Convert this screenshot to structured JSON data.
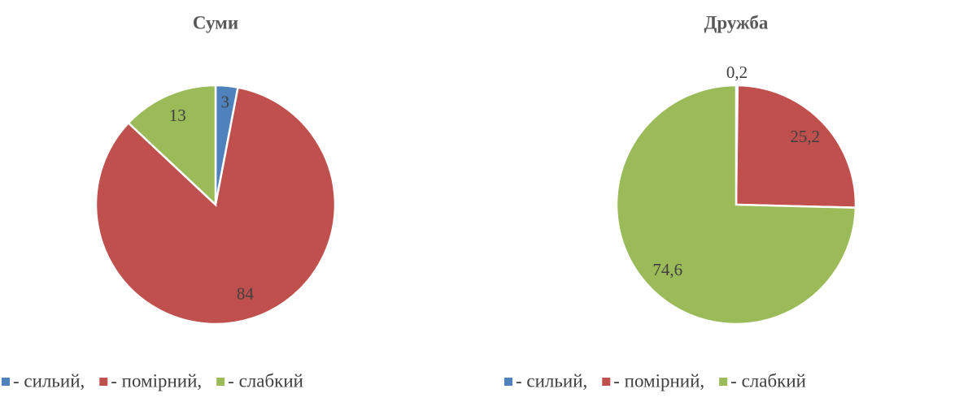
{
  "chart_data": [
    {
      "type": "pie",
      "title": "Суми",
      "categories": [
        "- сильий,",
        "- помірний,",
        "- слабкий"
      ],
      "values": [
        3,
        84,
        13
      ],
      "colors": [
        "#4f81bd",
        "#c0504d",
        "#9bbb59"
      ]
    },
    {
      "type": "pie",
      "title": "Дружба",
      "categories": [
        "- сильий,",
        "- помірний,",
        "- слабкий"
      ],
      "values": [
        0.2,
        25.2,
        74.6
      ],
      "value_labels": [
        "0,2",
        "25,2",
        "74,6"
      ],
      "colors": [
        "#4f81bd",
        "#c0504d",
        "#9bbb59"
      ]
    }
  ]
}
